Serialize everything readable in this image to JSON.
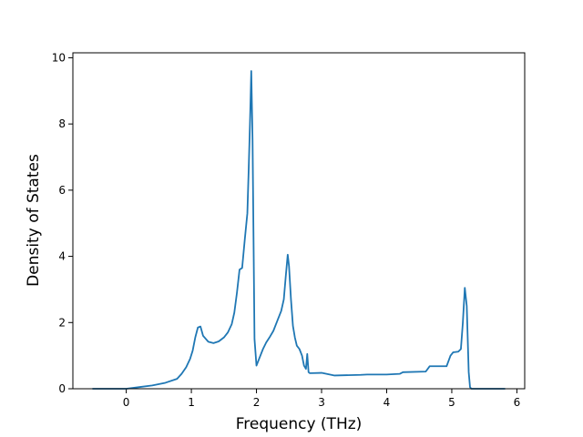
{
  "chart_data": {
    "type": "line",
    "title": "",
    "xlabel": "Frequency (THz)",
    "ylabel": "Density of States",
    "xlim": [
      -0.82,
      6.12
    ],
    "ylim": [
      0,
      10.15
    ],
    "xticks": [
      "0",
      "1",
      "2",
      "3",
      "4",
      "5",
      "6"
    ],
    "yticks": [
      "0",
      "2",
      "4",
      "6",
      "8",
      "10"
    ],
    "grid": false,
    "legend": "none",
    "line_color": "#1f77b4",
    "series": [
      {
        "x": [
          -0.52,
          0.0,
          0.2,
          0.4,
          0.6,
          0.78,
          0.85,
          0.92,
          0.98,
          1.02,
          1.06,
          1.1,
          1.14,
          1.18,
          1.26,
          1.34,
          1.42,
          1.5,
          1.56,
          1.62,
          1.66,
          1.7,
          1.74,
          1.78,
          1.82,
          1.86,
          1.88,
          1.9,
          1.92,
          1.94,
          1.97,
          2.0,
          2.05,
          2.1,
          2.15,
          2.2,
          2.26,
          2.32,
          2.38,
          2.42,
          2.45,
          2.48,
          2.5,
          2.53,
          2.56,
          2.59,
          2.62,
          2.66,
          2.7,
          2.73,
          2.76,
          2.78,
          2.8,
          2.82,
          2.84,
          3.0,
          3.2,
          3.6,
          3.7,
          4.0,
          4.2,
          4.25,
          4.6,
          4.66,
          4.92,
          4.98,
          5.02,
          5.1,
          5.14,
          5.17,
          5.2,
          5.23,
          5.26,
          5.28,
          5.3,
          5.4,
          5.82
        ],
        "y": [
          0,
          0,
          0.05,
          0.1,
          0.18,
          0.3,
          0.45,
          0.65,
          0.9,
          1.15,
          1.55,
          1.85,
          1.88,
          1.6,
          1.42,
          1.38,
          1.43,
          1.55,
          1.7,
          1.95,
          2.3,
          2.9,
          3.6,
          3.65,
          4.5,
          5.3,
          6.6,
          8.0,
          9.6,
          7.5,
          1.5,
          0.7,
          0.95,
          1.2,
          1.4,
          1.55,
          1.75,
          2.05,
          2.35,
          2.7,
          3.4,
          4.05,
          3.7,
          2.7,
          1.9,
          1.55,
          1.3,
          1.2,
          1.0,
          0.7,
          0.6,
          1.05,
          0.5,
          0.47,
          0.47,
          0.48,
          0.4,
          0.42,
          0.43,
          0.43,
          0.45,
          0.5,
          0.52,
          0.68,
          0.68,
          1.0,
          1.1,
          1.12,
          1.2,
          2.0,
          3.05,
          2.5,
          0.5,
          0.05,
          0.0,
          0.0,
          0.0
        ]
      }
    ]
  }
}
